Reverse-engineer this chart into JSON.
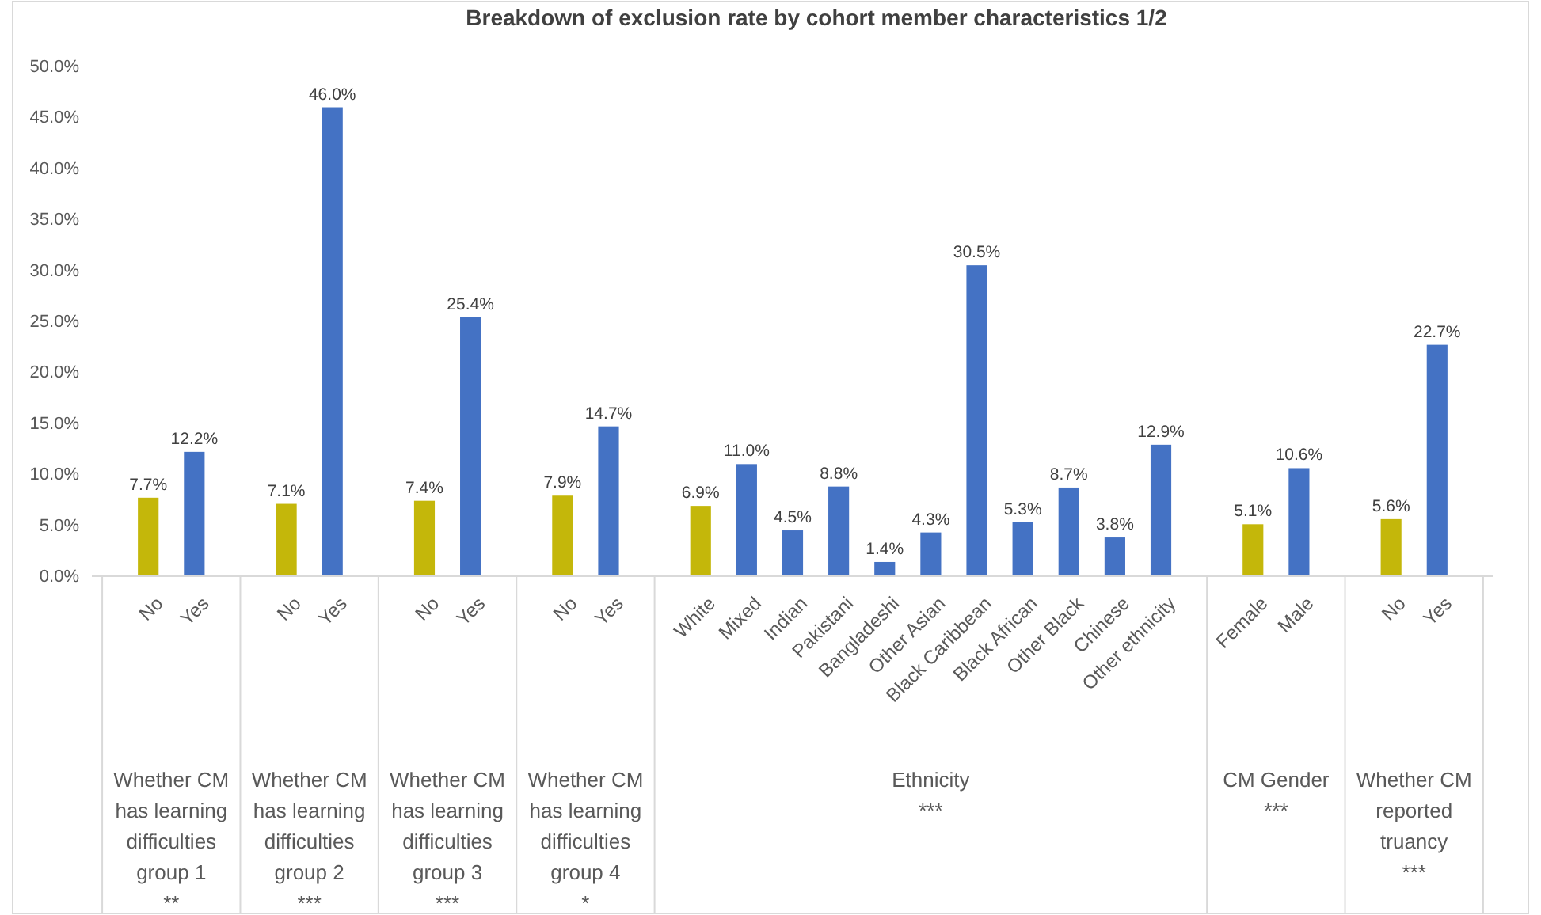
{
  "chart_data": {
    "type": "bar",
    "title": "Breakdown of exclusion rate by cohort member characteristics 1/2",
    "categories": [
      null,
      "No",
      "Yes",
      null,
      "No",
      "Yes",
      null,
      "No",
      "Yes",
      null,
      "No",
      "Yes",
      null,
      "White",
      "Mixed",
      "Indian",
      "Pakistani",
      "Bangladeshi",
      "Other Asian",
      "Black Caribbean",
      "Black African",
      "Other Black",
      "Chinese",
      "Other ethnicity",
      null,
      "Female",
      "Male",
      null,
      "No",
      "Yes",
      null
    ],
    "values": [
      null,
      7.7,
      12.2,
      null,
      7.1,
      46.0,
      null,
      7.4,
      25.4,
      null,
      7.9,
      14.7,
      null,
      6.9,
      11.0,
      4.5,
      8.8,
      1.4,
      4.3,
      30.5,
      5.3,
      8.7,
      3.8,
      12.9,
      null,
      5.1,
      10.6,
      null,
      5.6,
      22.7,
      null
    ],
    "colors": [
      null,
      "#c4b70a",
      "#4472c4",
      null,
      "#c4b70a",
      "#4472c4",
      null,
      "#c4b70a",
      "#4472c4",
      null,
      "#c4b70a",
      "#4472c4",
      null,
      "#c4b70a",
      "#4472c4",
      "#4472c4",
      "#4472c4",
      "#4472c4",
      "#4472c4",
      "#4472c4",
      "#4472c4",
      "#4472c4",
      "#4472c4",
      "#4472c4",
      null,
      "#c4b70a",
      "#4472c4",
      null,
      "#c4b70a",
      "#4472c4",
      null
    ],
    "value_labels": [
      null,
      "7.7%",
      "12.2%",
      null,
      "7.1%",
      "46.0%",
      null,
      "7.4%",
      "25.4%",
      null,
      "7.9%",
      "14.7%",
      null,
      "6.9%",
      "11.0%",
      "4.5%",
      "8.8%",
      "1.4%",
      "4.3%",
      "30.5%",
      "5.3%",
      "8.7%",
      "3.8%",
      "12.9%",
      null,
      "5.1%",
      "10.6%",
      null,
      "5.6%",
      "22.7%",
      null
    ],
    "ylim": [
      0,
      50
    ],
    "yticks": [
      {
        "value": 0,
        "label": "0.0%"
      },
      {
        "value": 5,
        "label": "5.0%"
      },
      {
        "value": 10,
        "label": "10.0%"
      },
      {
        "value": 15,
        "label": "15.0%"
      },
      {
        "value": 20,
        "label": "20.0%"
      },
      {
        "value": 25,
        "label": "25.0%"
      },
      {
        "value": 30,
        "label": "30.0%"
      },
      {
        "value": 35,
        "label": "35.0%"
      },
      {
        "value": 40,
        "label": "40.0%"
      },
      {
        "value": 45,
        "label": "45.0%"
      },
      {
        "value": 50,
        "label": "50.0%"
      }
    ],
    "grid": false,
    "annotations": [
      "Whether CM has learning difficulties group 1 **",
      "Whether CM has learning difficulties group 2 ***",
      "Whether CM has learning difficulties group 3 ***",
      "Whether CM has learning difficulties group 4 *",
      "Ethnicity ***",
      "CM Gender ***",
      "Whether CM reported truancy ***"
    ]
  }
}
